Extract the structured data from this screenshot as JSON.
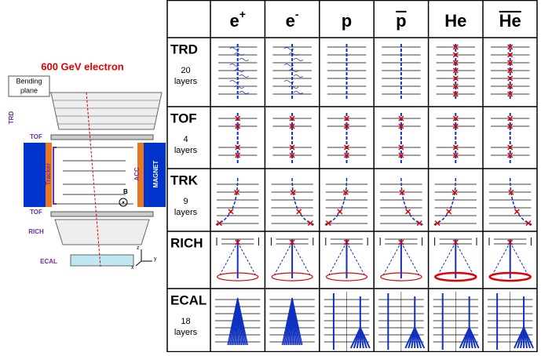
{
  "detector": {
    "title": "600 GeV electron",
    "bending_plane": [
      "Bending",
      "plane"
    ],
    "labels": {
      "trd": "TRD",
      "tof_top": "TOF",
      "tracker": "Tracker",
      "acc": "ACC",
      "magnet": "MAGNET",
      "b_field": "B",
      "tof_bottom": "TOF",
      "rich": "RICH",
      "ecal": "ECAL"
    },
    "axes": {
      "z": "z",
      "y": "y",
      "x": "x"
    }
  },
  "table": {
    "columns": [
      {
        "base": "e",
        "sup": "+"
      },
      {
        "base": "e",
        "sup": "-"
      },
      {
        "base": "p"
      },
      {
        "base": "p",
        "overline": true
      },
      {
        "base": "He"
      },
      {
        "base": "He",
        "overline": true
      }
    ],
    "rows": [
      {
        "name": "TRD",
        "note": [
          "20",
          "layers"
        ]
      },
      {
        "name": "TOF",
        "note": [
          "4",
          "layers"
        ]
      },
      {
        "name": "TRK",
        "note": [
          "9",
          "layers"
        ]
      },
      {
        "name": "RICH"
      },
      {
        "name": "ECAL",
        "note": [
          "18",
          "layers"
        ]
      }
    ]
  }
}
